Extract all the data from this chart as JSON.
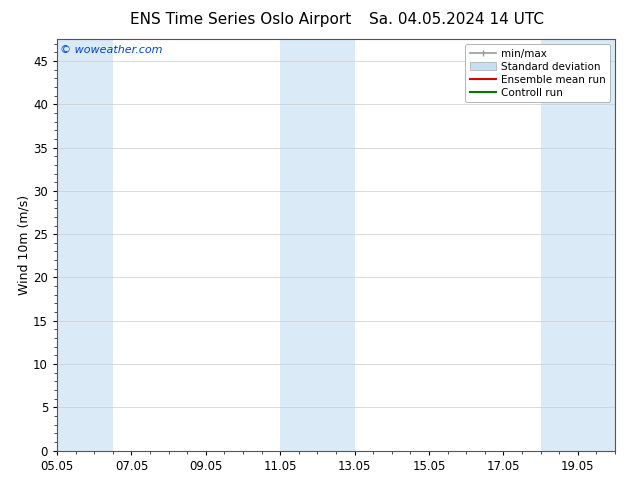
{
  "title_left": "ENS Time Series Oslo Airport",
  "title_right": "Sa. 04.05.2024 14 UTC",
  "ylabel": "Wind 10m (m/s)",
  "ylim": [
    0,
    47.5
  ],
  "yticks": [
    0,
    5,
    10,
    15,
    20,
    25,
    30,
    35,
    40,
    45
  ],
  "xtick_labels": [
    "05.05",
    "07.05",
    "09.05",
    "11.05",
    "13.05",
    "15.05",
    "17.05",
    "19.05"
  ],
  "xtick_positions": [
    0,
    2,
    4,
    6,
    8,
    10,
    12,
    14
  ],
  "xlim": [
    0,
    15
  ],
  "watermark": "© woweather.com",
  "watermark_color": "#0044cc",
  "background_color": "#ffffff",
  "plot_bg_color": "#ffffff",
  "band_color": "#daeaf7",
  "band_ranges": [
    [
      0,
      1.5
    ],
    [
      6,
      8
    ],
    [
      13,
      15
    ]
  ],
  "legend_labels": [
    "min/max",
    "Standard deviation",
    "Ensemble mean run",
    "Controll run"
  ],
  "grid_color": "#cccccc",
  "title_fontsize": 11,
  "axis_fontsize": 9,
  "tick_fontsize": 8.5,
  "legend_fontsize": 7.5
}
